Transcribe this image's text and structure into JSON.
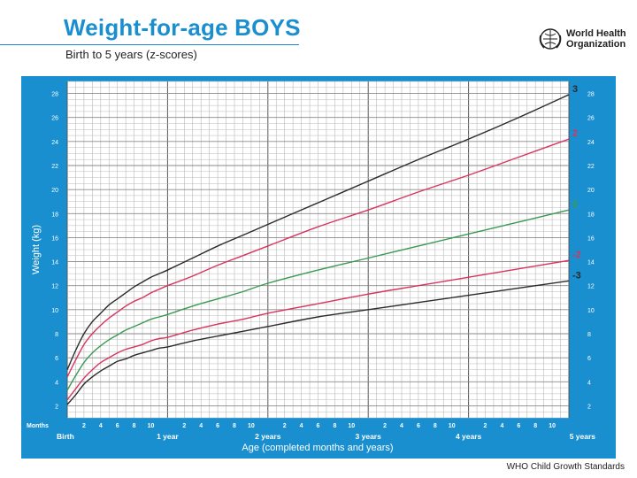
{
  "header": {
    "title": "Weight-for-age BOYS",
    "subtitle": "Birth to 5 years (z-scores)",
    "org_line1": "World Health",
    "org_line2": "Organization",
    "logo_icon": "who-emblem-icon"
  },
  "footer": {
    "text": "WHO Child Growth Standards"
  },
  "chart_data": {
    "type": "line",
    "title": "Weight-for-age BOYS",
    "subtitle": "Birth to 5 years (z-scores)",
    "xlabel": "Age (completed months and years)",
    "ylabel": "Weight (kg)",
    "xlim": [
      0,
      60
    ],
    "ylim": [
      1,
      29
    ],
    "grid": true,
    "yticks": [
      2,
      4,
      6,
      8,
      10,
      12,
      14,
      16,
      18,
      20,
      22,
      24,
      26,
      28
    ],
    "months_label": "Months",
    "month_ticks": [
      2,
      4,
      6,
      8,
      10,
      2,
      4,
      6,
      8,
      10,
      2,
      4,
      6,
      8,
      10,
      2,
      4,
      6,
      8,
      10,
      2,
      4,
      6,
      8,
      10
    ],
    "year_ticks": [
      {
        "month": 0,
        "label": "Birth"
      },
      {
        "month": 12,
        "label": "1 year"
      },
      {
        "month": 24,
        "label": "2 years"
      },
      {
        "month": 36,
        "label": "3 years"
      },
      {
        "month": 48,
        "label": "4 years"
      },
      {
        "month": 60,
        "label": "5 years"
      }
    ],
    "colors": {
      "frame": "#1a8fd0",
      "grid": "#b9b9b9",
      "grid_major": "#555555",
      "black": "#2b2b2b",
      "red": "#d9345e",
      "green": "#3a9a52"
    },
    "x": [
      0,
      1,
      2,
      3,
      4,
      5,
      6,
      7,
      8,
      9,
      10,
      11,
      12,
      15,
      18,
      21,
      24,
      30,
      36,
      42,
      48,
      54,
      60
    ],
    "series": [
      {
        "name": "3",
        "label": "3",
        "color": "black",
        "values": [
          5.0,
          6.6,
          8.0,
          9.0,
          9.7,
          10.4,
          10.9,
          11.4,
          11.9,
          12.3,
          12.7,
          13.0,
          13.3,
          14.3,
          15.3,
          16.2,
          17.1,
          18.9,
          20.7,
          22.5,
          24.2,
          26.0,
          27.9
        ]
      },
      {
        "name": "2",
        "label": "2",
        "color": "red",
        "values": [
          4.4,
          5.8,
          7.1,
          8.0,
          8.7,
          9.3,
          9.8,
          10.3,
          10.7,
          11.0,
          11.4,
          11.7,
          12.0,
          12.8,
          13.7,
          14.5,
          15.3,
          16.9,
          18.3,
          19.8,
          21.2,
          22.7,
          24.2
        ]
      },
      {
        "name": "0",
        "label": "0",
        "color": "green",
        "values": [
          3.3,
          4.5,
          5.6,
          6.4,
          7.0,
          7.5,
          7.9,
          8.3,
          8.6,
          8.9,
          9.2,
          9.4,
          9.6,
          10.3,
          10.9,
          11.5,
          12.2,
          13.3,
          14.3,
          15.3,
          16.3,
          17.3,
          18.3
        ]
      },
      {
        "name": "-2",
        "label": "-2",
        "color": "red",
        "values": [
          2.5,
          3.4,
          4.3,
          5.0,
          5.6,
          6.0,
          6.4,
          6.7,
          6.9,
          7.1,
          7.4,
          7.6,
          7.7,
          8.3,
          8.8,
          9.2,
          9.7,
          10.5,
          11.3,
          12.0,
          12.7,
          13.4,
          14.1
        ]
      },
      {
        "name": "-3",
        "label": "-3",
        "color": "black",
        "values": [
          2.1,
          2.9,
          3.8,
          4.4,
          4.9,
          5.3,
          5.7,
          5.9,
          6.2,
          6.4,
          6.6,
          6.8,
          6.9,
          7.4,
          7.8,
          8.2,
          8.6,
          9.4,
          10.0,
          10.6,
          11.2,
          11.8,
          12.4
        ]
      }
    ]
  }
}
